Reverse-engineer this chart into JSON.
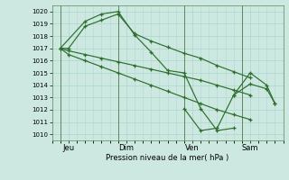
{
  "title": "Pression niveau de la mer( hPa )",
  "ylabel_ticks": [
    1010,
    1011,
    1012,
    1013,
    1014,
    1015,
    1016,
    1017,
    1018,
    1019,
    1020
  ],
  "ylim": [
    1009.5,
    1020.5
  ],
  "xlim": [
    -0.5,
    13.5
  ],
  "background_color": "#cce8e0",
  "grid_color": "#b0d8d0",
  "line_color": "#2d6e2d",
  "day_labels": [
    "Jeu",
    "Dim",
    "Ven",
    "Sam"
  ],
  "day_positions": [
    0.5,
    4.0,
    8.0,
    11.5
  ],
  "vline_positions": [
    0.0,
    3.5,
    7.5,
    11.0
  ],
  "line1_x": [
    0.0,
    0.5,
    1.5,
    2.5,
    3.5,
    4.5,
    5.5,
    6.5,
    7.5,
    8.5,
    9.5,
    10.5,
    11.5
  ],
  "line1_y": [
    1017.0,
    1017.0,
    1018.8,
    1019.3,
    1019.8,
    1018.2,
    1017.6,
    1017.1,
    1016.6,
    1016.2,
    1015.6,
    1015.1,
    1014.6
  ],
  "line2_x": [
    0.0,
    0.5,
    1.5,
    2.5,
    3.5,
    4.5,
    5.5,
    6.5,
    7.5,
    8.5,
    9.5,
    10.5,
    11.5
  ],
  "line2_y": [
    1017.0,
    1016.8,
    1016.5,
    1016.2,
    1015.9,
    1015.6,
    1015.3,
    1015.0,
    1014.7,
    1014.4,
    1014.0,
    1013.6,
    1013.2
  ],
  "line3_x": [
    0.0,
    0.5,
    1.5,
    2.5,
    3.5,
    4.5,
    5.5,
    6.5,
    7.5,
    8.5,
    9.5,
    10.5,
    11.5
  ],
  "line3_y": [
    1017.0,
    1016.5,
    1016.0,
    1015.5,
    1015.0,
    1014.5,
    1014.0,
    1013.5,
    1013.0,
    1012.5,
    1012.0,
    1011.6,
    1011.2
  ],
  "line4_x": [
    0.0,
    1.5,
    2.5,
    3.5,
    4.5,
    5.5,
    6.5,
    7.5,
    8.5,
    9.5,
    10.5
  ],
  "line4_y": [
    1017.0,
    1019.2,
    1019.8,
    1020.0,
    1018.1,
    1016.7,
    1015.2,
    1015.0,
    1012.1,
    1010.3,
    1010.5
  ],
  "line5_x": [
    7.5,
    8.5,
    9.5,
    10.5,
    11.5,
    12.5,
    13.0
  ],
  "line5_y": [
    1012.1,
    1010.3,
    1010.5,
    1013.2,
    1014.1,
    1013.7,
    1012.5
  ],
  "line6_x": [
    10.5,
    11.5,
    12.5,
    13.0
  ],
  "line6_y": [
    1013.2,
    1015.0,
    1014.0,
    1012.5
  ]
}
